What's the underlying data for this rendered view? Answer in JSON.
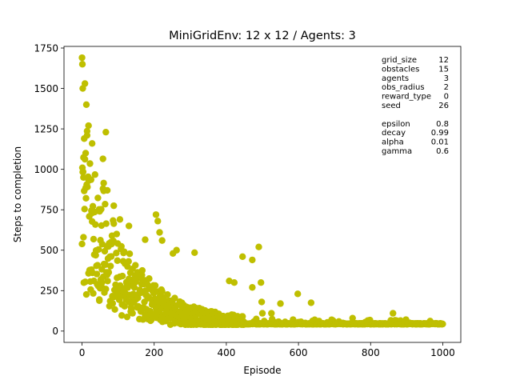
{
  "chart_data": {
    "type": "scatter",
    "title": "MiniGridEnv: 12 x 12 / Agents: 3",
    "xlabel": "Episode",
    "ylabel": "Steps to completion",
    "xlim": [
      -50,
      1050
    ],
    "ylim": [
      -70,
      1760
    ],
    "xticks": [
      0,
      200,
      400,
      600,
      800,
      1000
    ],
    "yticks": [
      0,
      250,
      500,
      750,
      1000,
      1250,
      1500,
      1750
    ],
    "grid": false,
    "marker_color": "#bfbf00",
    "episodes": 1000,
    "trend": {
      "floor": 45,
      "scale": 900,
      "decay_episodes": 110
    },
    "outliers": [
      {
        "x": 0,
        "y": 1690
      },
      {
        "x": 1,
        "y": 1650
      },
      {
        "x": 2,
        "y": 1500
      },
      {
        "x": 8,
        "y": 1530
      },
      {
        "x": 12,
        "y": 1400
      },
      {
        "x": 18,
        "y": 1270
      },
      {
        "x": 28,
        "y": 1160
      },
      {
        "x": 6,
        "y": 1190
      },
      {
        "x": 14,
        "y": 1210
      },
      {
        "x": 10,
        "y": 1100
      },
      {
        "x": 66,
        "y": 1230
      },
      {
        "x": 58,
        "y": 1065
      },
      {
        "x": 4,
        "y": 950
      },
      {
        "x": 4,
        "y": 580
      },
      {
        "x": 60,
        "y": 915
      },
      {
        "x": 70,
        "y": 870
      },
      {
        "x": 88,
        "y": 775
      },
      {
        "x": 105,
        "y": 690
      },
      {
        "x": 130,
        "y": 650
      },
      {
        "x": 175,
        "y": 565
      },
      {
        "x": 205,
        "y": 720
      },
      {
        "x": 210,
        "y": 680
      },
      {
        "x": 215,
        "y": 610
      },
      {
        "x": 222,
        "y": 560
      },
      {
        "x": 262,
        "y": 500
      },
      {
        "x": 252,
        "y": 480
      },
      {
        "x": 312,
        "y": 485
      },
      {
        "x": 472,
        "y": 440
      },
      {
        "x": 490,
        "y": 520
      },
      {
        "x": 496,
        "y": 300
      },
      {
        "x": 498,
        "y": 180
      },
      {
        "x": 500,
        "y": 110
      },
      {
        "x": 445,
        "y": 460
      },
      {
        "x": 422,
        "y": 300
      },
      {
        "x": 408,
        "y": 310
      },
      {
        "x": 550,
        "y": 170
      },
      {
        "x": 598,
        "y": 230
      },
      {
        "x": 635,
        "y": 175
      },
      {
        "x": 750,
        "y": 80
      },
      {
        "x": 862,
        "y": 110
      },
      {
        "x": 48,
        "y": 195
      },
      {
        "x": 55,
        "y": 300
      },
      {
        "x": 26,
        "y": 380
      },
      {
        "x": 140,
        "y": 110
      },
      {
        "x": 175,
        "y": 100
      },
      {
        "x": 472,
        "y": 270
      },
      {
        "x": 525,
        "y": 110
      }
    ]
  },
  "parameters": {
    "keys": [
      "grid_size",
      "obstacles",
      "agents",
      "obs_radius",
      "reward_type",
      "seed",
      "",
      "epsilon",
      "decay",
      "alpha",
      "gamma"
    ],
    "values": [
      "12",
      "15",
      "3",
      "2",
      "0",
      "26",
      "",
      "0.8",
      "0.99",
      "0.01",
      "0.6"
    ]
  }
}
